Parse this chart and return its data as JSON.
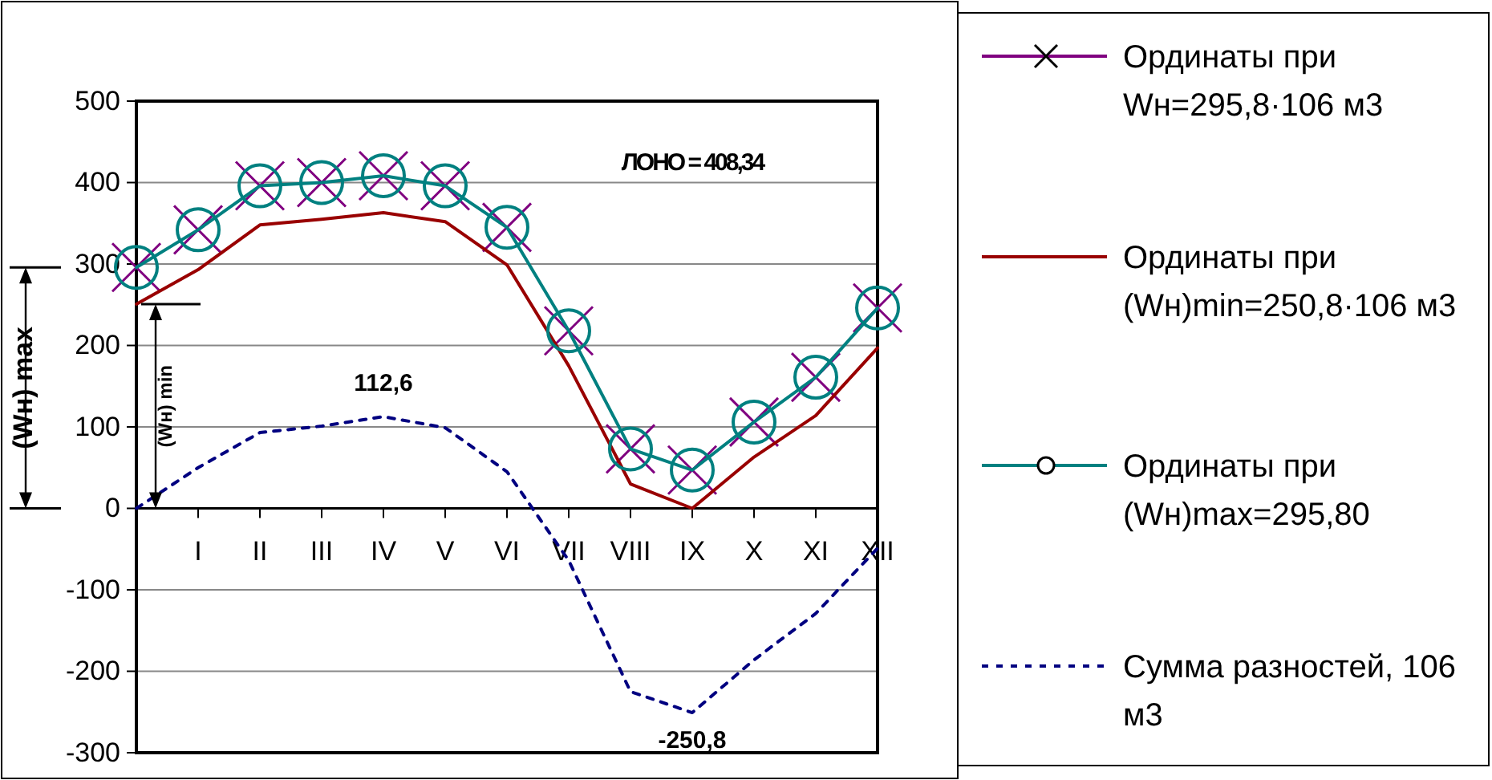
{
  "chart_data": {
    "type": "line",
    "categories": [
      null,
      "I",
      "II",
      "III",
      "IV",
      "V",
      "VI",
      "VII",
      "VIII",
      "IX",
      "X",
      "XI",
      "XII"
    ],
    "ylim": [
      -300,
      500
    ],
    "yticks": [
      -300,
      -200,
      -100,
      0,
      100,
      200,
      300,
      400,
      500
    ],
    "grid": "y",
    "legend": "right",
    "series": [
      {
        "name": "Ординаты при Wн=295,8·106 м3",
        "color": "#800080",
        "type": "scatter",
        "marker": "cross",
        "values": [
          295.8,
          342,
          396,
          400,
          408.34,
          396,
          345,
          218,
          73,
          47,
          106,
          161,
          246
        ]
      },
      {
        "name": "Ординаты при (Wн)min=250,8·106 м3",
        "color": "#990000",
        "marker": "none",
        "values": [
          250.8,
          293,
          348,
          355,
          363,
          352,
          299,
          175,
          30,
          0,
          63,
          114,
          197
        ]
      },
      {
        "name": "Ординаты при (Wн)max=295,80",
        "color": "#008080",
        "marker": "circle",
        "values": [
          295.8,
          342,
          396,
          400,
          408.34,
          396,
          345,
          218,
          73,
          47,
          106,
          161,
          246
        ]
      },
      {
        "name": "Сумма разностей, 106 м3",
        "color": "#000080",
        "marker": "none",
        "line_style": "dashed",
        "values": [
          0,
          50,
          93,
          101,
          112.6,
          99,
          45,
          -64,
          -225,
          -250.8,
          -186,
          -129,
          -49
        ]
      }
    ],
    "annotations": [
      "ЛОНО = 408,34",
      {
        "text": "112,6",
        "x": "IV",
        "y": 112.6
      },
      {
        "text": "-250,8",
        "x": "IX",
        "y": -250.8
      },
      "(Wн) max",
      "(Wн) min"
    ]
  }
}
